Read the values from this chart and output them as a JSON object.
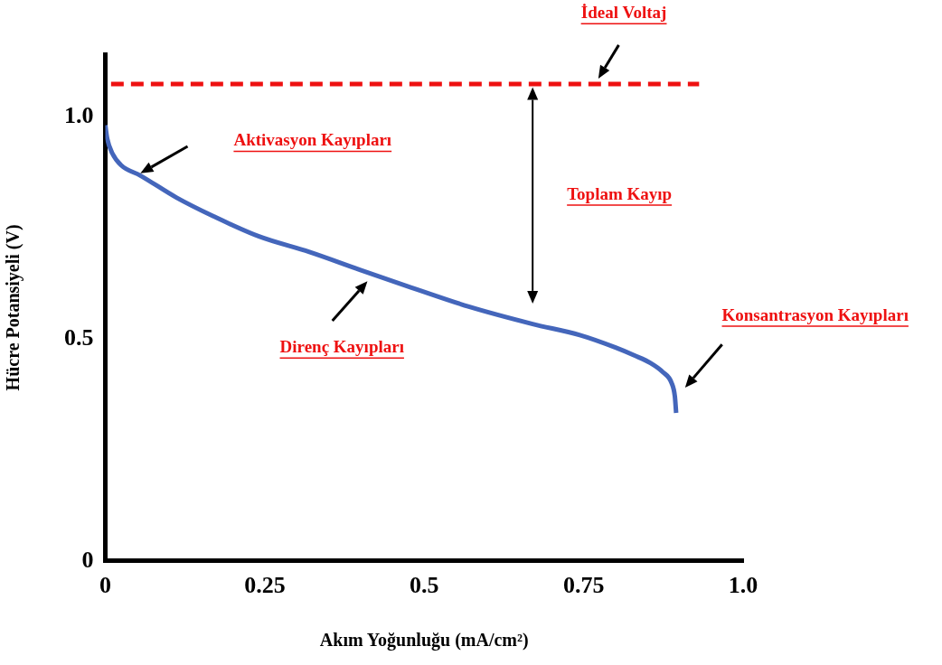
{
  "chart_data": {
    "type": "line",
    "xlabel": "Akım Yoğunluğu (mA/cm²)",
    "ylabel": "Hücre Potansiyeli (V)",
    "xlim": [
      0,
      1.0
    ],
    "xticks": [
      0,
      0.25,
      0.5,
      0.75,
      {
        "value": 1,
        "label": "1.0"
      }
    ],
    "ylim": [
      0,
      1.14
    ],
    "yticks": [
      0,
      0.5,
      {
        "value": 1,
        "label": "1.0"
      }
    ],
    "grid": false,
    "legend": false,
    "marker": "none",
    "series": [
      {
        "color": "#4466bb",
        "line_style": "solid",
        "x": [
          0,
          0.003,
          0.011,
          0.025,
          0.055,
          0.112,
          0.17,
          0.241,
          0.32,
          0.399,
          0.48,
          0.57,
          0.67,
          0.744,
          0.8,
          0.83,
          0.855,
          0.874,
          0.888,
          0.893,
          0.895
        ],
        "values": [
          0.98,
          0.95,
          0.917,
          0.89,
          0.867,
          0.817,
          0.775,
          0.73,
          0.695,
          0.655,
          0.615,
          0.572,
          0.533,
          0.508,
          0.48,
          0.462,
          0.445,
          0.425,
          0.4,
          0.37,
          0.333
        ]
      },
      {
        "color": "#ee1111",
        "line_style": "dashed",
        "x": [
          0.009,
          0.931
        ],
        "values": [
          1.073,
          1.073
        ]
      }
    ],
    "annotations": [
      "İdeal Voltaj",
      "Aktivasyon Kayıpları",
      "Toplam Kayıp",
      "Direnç Kayıpları",
      "Konsantrasyon Kayıpları"
    ]
  }
}
